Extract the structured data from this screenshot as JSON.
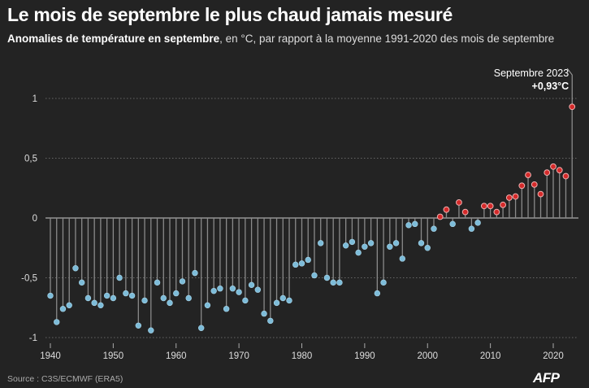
{
  "title": "Le mois de septembre le plus chaud jamais mesuré",
  "subtitle_bold": "Anomalies de température en septembre",
  "subtitle_rest": ", en °C, par rapport à la moyenne 1991-2020 des mois de septembre",
  "source": "Source : C3S/ECMWF (ERA5)",
  "logo": "AFP",
  "chart_data": {
    "type": "lollipop",
    "xlabel": "",
    "ylabel": "",
    "xlim": [
      1940,
      2023
    ],
    "ylim": [
      -1,
      1
    ],
    "x_ticks": [
      "1940",
      "1950",
      "1960",
      "1970",
      "1980",
      "1990",
      "2000",
      "2010",
      "2020"
    ],
    "y_ticks": [
      {
        "v": 1,
        "label": "1"
      },
      {
        "v": 0.5,
        "label": "0,5"
      },
      {
        "v": 0,
        "label": "0"
      },
      {
        "v": -0.5,
        "label": "-0,5"
      },
      {
        "v": -1,
        "label": "-1"
      }
    ],
    "grid": true,
    "colors": {
      "negative": "#7dbcd9",
      "positive": "#d42a2a"
    },
    "annotation": {
      "label": "Septembre 2023",
      "value": "+0,93°C",
      "year": 2023
    },
    "years_start": 1940,
    "values": [
      -0.65,
      -0.87,
      -0.76,
      -0.73,
      -0.42,
      -0.54,
      -0.67,
      -0.71,
      -0.73,
      -0.65,
      -0.67,
      -0.5,
      -0.63,
      -0.65,
      -0.9,
      -0.69,
      -0.94,
      -0.54,
      -0.67,
      -0.71,
      -0.63,
      -0.53,
      -0.67,
      -0.46,
      -0.92,
      -0.73,
      -0.61,
      -0.59,
      -0.76,
      -0.59,
      -0.62,
      -0.69,
      -0.56,
      -0.6,
      -0.8,
      -0.86,
      -0.71,
      -0.67,
      -0.69,
      -0.39,
      -0.38,
      -0.35,
      -0.48,
      -0.21,
      -0.5,
      -0.54,
      -0.54,
      -0.23,
      -0.2,
      -0.29,
      -0.24,
      -0.21,
      -0.63,
      -0.54,
      -0.24,
      -0.21,
      -0.34,
      -0.06,
      -0.05,
      -0.21,
      -0.25,
      -0.09,
      0.01,
      0.07,
      -0.05,
      0.13,
      0.05,
      -0.09,
      -0.04,
      0.1,
      0.1,
      0.05,
      0.11,
      0.17,
      0.18,
      0.27,
      0.36,
      0.28,
      0.2,
      0.38,
      0.43,
      0.4,
      0.35,
      0.93
    ]
  }
}
